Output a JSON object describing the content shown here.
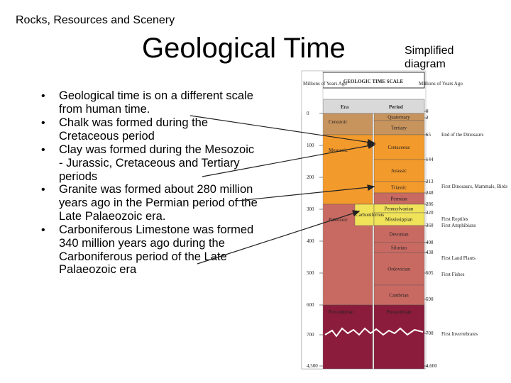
{
  "header": "Rocks, Resources and Scenery",
  "title": "Geological Time",
  "side_label": "Simplified diagram",
  "bullets": [
    "Geological time is on a different scale from human time.",
    "Chalk was formed during the Cretaceous period",
    "Clay was formed during the Mesozoic - Jurassic, Cretaceous and Tertiary periods",
    "Granite was formed about 280 million years ago in the Permian period of the Late Palaeozoic era.",
    "Carboniferous Limestone was formed 340 million years ago during the Carboniferous period of the Late Palaeozoic era"
  ],
  "diagram": {
    "title": "GEOLOGIC TIME SCALE",
    "left_header": "Millions of Years Ago",
    "right_header": "Millions of Years Ago",
    "era_header": "Era",
    "period_header": "Period",
    "left_ticks": [
      "0",
      "100",
      "200",
      "300",
      "400",
      "500",
      "600",
      "700",
      "4,500"
    ],
    "eras": [
      "Cenozoic",
      "Mesozoic",
      "Paleozoic",
      "Precambrian"
    ],
    "carboniferous": "Carboniferous",
    "periods": [
      "Quaternary",
      "Tertiary",
      "Cretaceous",
      "Jurassic",
      "Triassic",
      "Permian",
      "Pennsylvanian",
      "Mississippian",
      "Devonian",
      "Silurian",
      "Ordovician",
      "Cambrian",
      "Precambrian"
    ],
    "right_ticks": [
      "0",
      "2",
      "65",
      "144",
      "213",
      "248",
      "286",
      "320",
      "360",
      "408",
      "438",
      "505",
      "590",
      "700",
      "4,600"
    ],
    "events": [
      "End of the Dinosaurs",
      "First Dinosaurs, Mammals, Birds",
      "First Reptiles",
      "First Amphibians",
      "First Land Plants",
      "First Fishes",
      "First Invertebrates"
    ]
  }
}
